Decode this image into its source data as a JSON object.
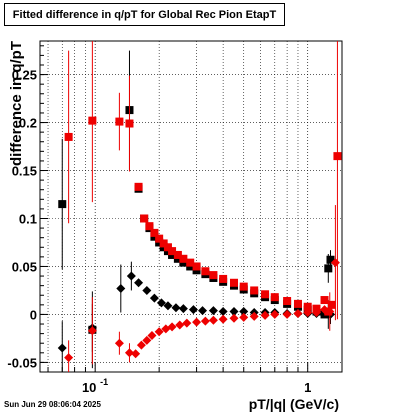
{
  "title": "Fitted difference in q/pT for Global Rec Pion EtapT",
  "footer": "Sun Jun 29 08:06:04 2025",
  "chart_data": {
    "type": "scatter",
    "title": "Fitted difference in q/pT for Global Rec Pion EtapT",
    "xlabel": "pT/|q| (GeV/c)",
    "ylabel": "difference in q/pT",
    "xscale": "log",
    "xlim": [
      0.055,
      1.45
    ],
    "ylim": [
      -0.06,
      0.285
    ],
    "grid": true,
    "xtick_labels": [
      {
        "value": 0.1,
        "label": "10^-1"
      },
      {
        "value": 1,
        "label": "1"
      }
    ],
    "ytick_labels": [
      "-0.05",
      "0",
      "0.05",
      "0.1",
      "0.15",
      "0.2",
      "0.25"
    ],
    "colors": {
      "black_series": "#000000",
      "red_series": "#ee0000"
    },
    "series": [
      {
        "marker": "square",
        "color": "#000000",
        "points": [
          {
            "x": 0.07,
            "y": 0.115,
            "yerr": 0.068
          },
          {
            "x": 0.097,
            "y": -0.016,
            "yerr": 0.04
          },
          {
            "x": 0.145,
            "y": 0.213,
            "yerr": 0.062
          },
          {
            "x": 0.16,
            "y": 0.131
          },
          {
            "x": 0.17,
            "y": 0.1
          },
          {
            "x": 0.18,
            "y": 0.09
          },
          {
            "x": 0.19,
            "y": 0.081
          },
          {
            "x": 0.2,
            "y": 0.075
          },
          {
            "x": 0.21,
            "y": 0.07
          },
          {
            "x": 0.22,
            "y": 0.066
          },
          {
            "x": 0.23,
            "y": 0.062
          },
          {
            "x": 0.245,
            "y": 0.058
          },
          {
            "x": 0.26,
            "y": 0.054
          },
          {
            "x": 0.28,
            "y": 0.05
          },
          {
            "x": 0.3,
            "y": 0.046
          },
          {
            "x": 0.33,
            "y": 0.042
          },
          {
            "x": 0.36,
            "y": 0.038
          },
          {
            "x": 0.4,
            "y": 0.034
          },
          {
            "x": 0.45,
            "y": 0.03
          },
          {
            "x": 0.5,
            "y": 0.026
          },
          {
            "x": 0.56,
            "y": 0.022
          },
          {
            "x": 0.63,
            "y": 0.018
          },
          {
            "x": 0.7,
            "y": 0.015
          },
          {
            "x": 0.8,
            "y": 0.011
          },
          {
            "x": 0.9,
            "y": 0.008
          },
          {
            "x": 1.0,
            "y": 0.005
          },
          {
            "x": 1.1,
            "y": 0.003
          },
          {
            "x": 1.2,
            "y": 0.0
          },
          {
            "x": 1.25,
            "y": 0.048,
            "yerr": 0.015
          },
          {
            "x": 1.28,
            "y": 0.057,
            "yerr": 0.01
          }
        ]
      },
      {
        "marker": "diamond",
        "color": "#000000",
        "points": [
          {
            "x": 0.07,
            "y": -0.035,
            "yerr": 0.028
          },
          {
            "x": 0.097,
            "y": -0.014,
            "yerr": 0.025
          },
          {
            "x": 0.132,
            "y": 0.027,
            "yerr": 0.025
          },
          {
            "x": 0.148,
            "y": 0.04,
            "yerr": 0.015
          },
          {
            "x": 0.16,
            "y": 0.033
          },
          {
            "x": 0.175,
            "y": 0.025
          },
          {
            "x": 0.19,
            "y": 0.017
          },
          {
            "x": 0.205,
            "y": 0.012
          },
          {
            "x": 0.22,
            "y": 0.009
          },
          {
            "x": 0.24,
            "y": 0.007
          },
          {
            "x": 0.26,
            "y": 0.006
          },
          {
            "x": 0.29,
            "y": 0.005
          },
          {
            "x": 0.32,
            "y": 0.004
          },
          {
            "x": 0.36,
            "y": 0.004
          },
          {
            "x": 0.4,
            "y": 0.003
          },
          {
            "x": 0.45,
            "y": 0.003
          },
          {
            "x": 0.5,
            "y": 0.003
          },
          {
            "x": 0.56,
            "y": 0.002
          },
          {
            "x": 0.63,
            "y": 0.002
          },
          {
            "x": 0.7,
            "y": 0.002
          },
          {
            "x": 0.8,
            "y": 0.001
          },
          {
            "x": 0.9,
            "y": 0.001
          },
          {
            "x": 1.0,
            "y": 0.001
          },
          {
            "x": 1.1,
            "y": 0.001
          },
          {
            "x": 1.2,
            "y": 0.001
          },
          {
            "x": 1.25,
            "y": 0.0,
            "yerr": 0.015
          },
          {
            "x": 1.28,
            "y": 0.0,
            "yerr": 0.01
          }
        ]
      },
      {
        "marker": "square",
        "color": "#ee0000",
        "points": [
          {
            "x": 0.075,
            "y": 0.185,
            "yerr": 0.09
          },
          {
            "x": 0.097,
            "y": 0.202,
            "yerr": 0.085
          },
          {
            "x": 0.13,
            "y": 0.201,
            "yerr": 0.03
          },
          {
            "x": 0.145,
            "y": 0.199,
            "yerr": 0.05
          },
          {
            "x": 0.16,
            "y": 0.133
          },
          {
            "x": 0.17,
            "y": 0.1
          },
          {
            "x": 0.18,
            "y": 0.092
          },
          {
            "x": 0.19,
            "y": 0.085
          },
          {
            "x": 0.2,
            "y": 0.079
          },
          {
            "x": 0.21,
            "y": 0.074
          },
          {
            "x": 0.22,
            "y": 0.07
          },
          {
            "x": 0.23,
            "y": 0.066
          },
          {
            "x": 0.245,
            "y": 0.062
          },
          {
            "x": 0.26,
            "y": 0.058
          },
          {
            "x": 0.28,
            "y": 0.054
          },
          {
            "x": 0.3,
            "y": 0.05
          },
          {
            "x": 0.33,
            "y": 0.045
          },
          {
            "x": 0.36,
            "y": 0.041
          },
          {
            "x": 0.4,
            "y": 0.037
          },
          {
            "x": 0.45,
            "y": 0.033
          },
          {
            "x": 0.5,
            "y": 0.029
          },
          {
            "x": 0.56,
            "y": 0.025
          },
          {
            "x": 0.63,
            "y": 0.021
          },
          {
            "x": 0.7,
            "y": 0.018
          },
          {
            "x": 0.8,
            "y": 0.014
          },
          {
            "x": 0.9,
            "y": 0.011
          },
          {
            "x": 1.0,
            "y": 0.008
          },
          {
            "x": 1.1,
            "y": 0.006
          },
          {
            "x": 1.2,
            "y": 0.015
          },
          {
            "x": 1.25,
            "y": 0.003
          },
          {
            "x": 1.3,
            "y": 0.01
          },
          {
            "x": 1.38,
            "y": 0.165,
            "yerr": 0.17
          }
        ]
      },
      {
        "marker": "diamond",
        "color": "#ee0000",
        "points": [
          {
            "x": 0.075,
            "y": -0.045,
            "yerr": 0.018
          },
          {
            "x": 0.097,
            "y": -0.017,
            "yerr": 0.035
          },
          {
            "x": 0.13,
            "y": -0.03,
            "yerr": 0.012
          },
          {
            "x": 0.145,
            "y": -0.04,
            "yerr": 0.01
          },
          {
            "x": 0.155,
            "y": -0.041
          },
          {
            "x": 0.165,
            "y": -0.032
          },
          {
            "x": 0.175,
            "y": -0.027
          },
          {
            "x": 0.185,
            "y": -0.022
          },
          {
            "x": 0.2,
            "y": -0.018
          },
          {
            "x": 0.215,
            "y": -0.015
          },
          {
            "x": 0.23,
            "y": -0.013
          },
          {
            "x": 0.25,
            "y": -0.011
          },
          {
            "x": 0.27,
            "y": -0.009
          },
          {
            "x": 0.3,
            "y": -0.008
          },
          {
            "x": 0.33,
            "y": -0.007
          },
          {
            "x": 0.36,
            "y": -0.006
          },
          {
            "x": 0.4,
            "y": -0.005
          },
          {
            "x": 0.45,
            "y": -0.004
          },
          {
            "x": 0.5,
            "y": -0.003
          },
          {
            "x": 0.56,
            "y": -0.002
          },
          {
            "x": 0.63,
            "y": -0.001
          },
          {
            "x": 0.7,
            "y": 0.0
          },
          {
            "x": 0.8,
            "y": 0.0
          },
          {
            "x": 0.9,
            "y": 0.001
          },
          {
            "x": 1.0,
            "y": 0.002
          },
          {
            "x": 1.1,
            "y": 0.002
          },
          {
            "x": 1.2,
            "y": 0.005
          },
          {
            "x": 1.27,
            "y": 0.003,
            "yerr": 0.02
          },
          {
            "x": 1.35,
            "y": 0.054,
            "yerr": 0.06
          }
        ]
      }
    ]
  }
}
